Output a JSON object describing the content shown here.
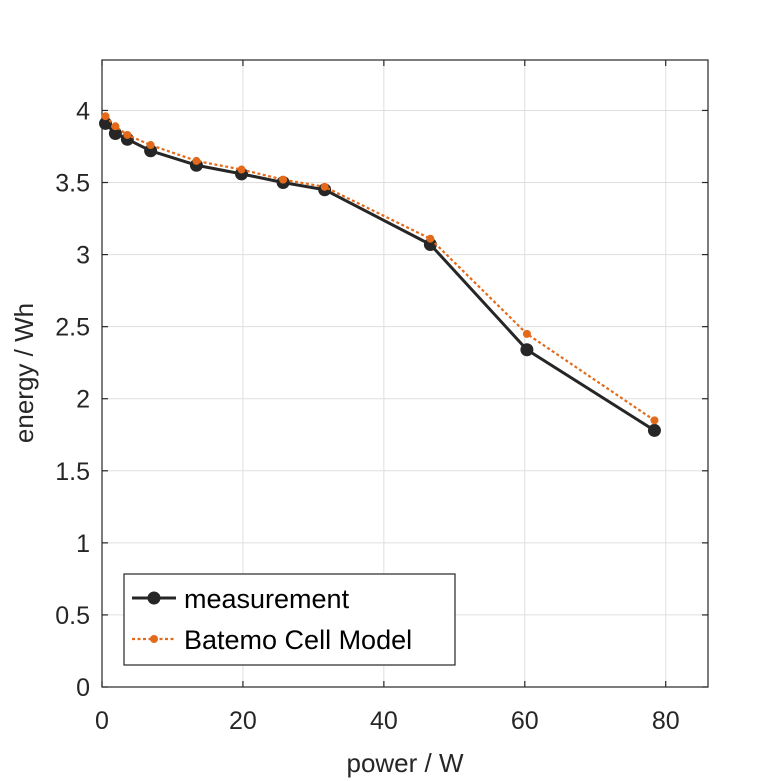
{
  "chart_data": {
    "type": "line",
    "title": "",
    "xlabel": "power / W",
    "ylabel": "energy / Wh",
    "xlim": [
      0,
      86
    ],
    "ylim": [
      0,
      4.35
    ],
    "xticks": [
      0,
      20,
      40,
      60,
      80
    ],
    "xtick_labels": [
      "0",
      "20",
      "40",
      "60",
      "80"
    ],
    "yticks": [
      0,
      0.5,
      1,
      1.5,
      2,
      2.5,
      3,
      3.5,
      4
    ],
    "ytick_labels": [
      "0",
      "0.5",
      "1",
      "1.5",
      "2",
      "2.5",
      "3",
      "3.5",
      "4"
    ],
    "grid": true,
    "legend_position": "bottom-left",
    "series": [
      {
        "name": "measurement",
        "color": "#262626",
        "line_style": "solid",
        "marker": "circle-large",
        "x": [
          0.5,
          1.9,
          3.6,
          6.9,
          13.4,
          19.8,
          25.7,
          31.6,
          46.6,
          60.3,
          78.4
        ],
        "values": [
          3.91,
          3.84,
          3.8,
          3.72,
          3.62,
          3.56,
          3.5,
          3.45,
          3.07,
          2.34,
          1.78
        ]
      },
      {
        "name": "Batemo Cell Model",
        "color": "#e36a1a",
        "line_style": "dotted",
        "marker": "circle-small",
        "x": [
          0.5,
          1.9,
          3.6,
          6.9,
          13.4,
          19.8,
          25.7,
          31.6,
          46.6,
          60.3,
          78.4
        ],
        "values": [
          3.96,
          3.89,
          3.83,
          3.76,
          3.65,
          3.59,
          3.52,
          3.47,
          3.11,
          2.45,
          1.85
        ]
      }
    ]
  }
}
